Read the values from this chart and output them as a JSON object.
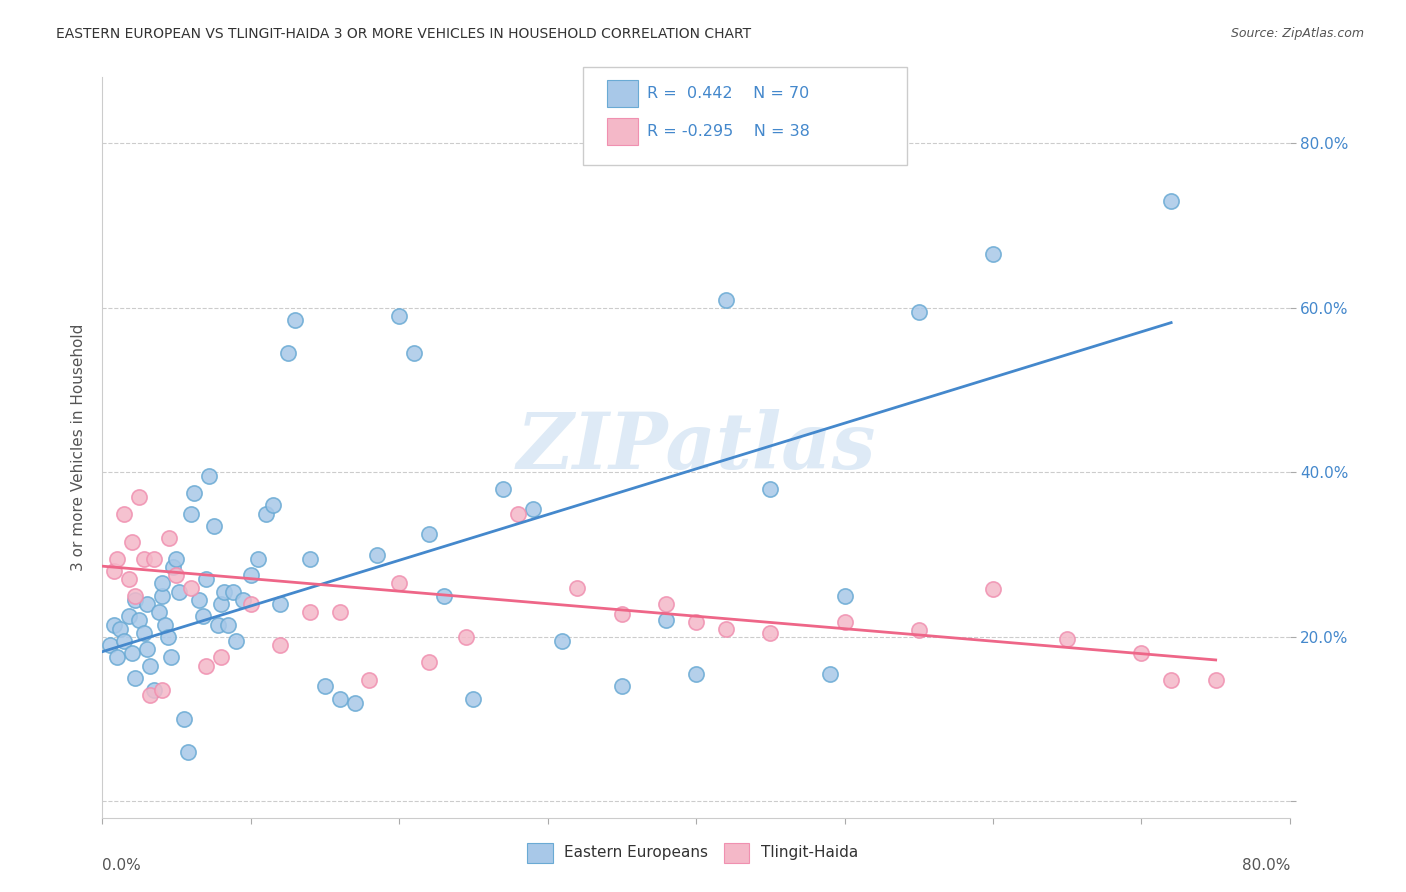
{
  "title": "EASTERN EUROPEAN VS TLINGIT-HAIDA 3 OR MORE VEHICLES IN HOUSEHOLD CORRELATION CHART",
  "source": "Source: ZipAtlas.com",
  "ylabel": "3 or more Vehicles in Household",
  "xlim": [
    0.0,
    0.8
  ],
  "ylim": [
    -0.02,
    0.88
  ],
  "ytick_vals": [
    0.0,
    0.2,
    0.4,
    0.6,
    0.8
  ],
  "ytick_labels": [
    "",
    "20.0%",
    "40.0%",
    "60.0%",
    "80.0%"
  ],
  "xtick_vals": [
    0.0,
    0.1,
    0.2,
    0.3,
    0.4,
    0.5,
    0.6,
    0.7,
    0.8
  ],
  "blue_R": 0.442,
  "blue_N": 70,
  "pink_R": -0.295,
  "pink_N": 38,
  "blue_color": "#a8c8e8",
  "pink_color": "#f4b8c8",
  "blue_edge_color": "#6aaad4",
  "pink_edge_color": "#f090b0",
  "blue_line_color": "#4488cc",
  "pink_line_color": "#ee6688",
  "watermark_color": "#c8ddf0",
  "watermark": "ZIPatlas",
  "legend_label_blue": "Eastern Europeans",
  "legend_label_pink": "Tlingit-Haida",
  "blue_scatter_x": [
    0.005,
    0.008,
    0.01,
    0.012,
    0.015,
    0.018,
    0.02,
    0.022,
    0.022,
    0.025,
    0.028,
    0.03,
    0.03,
    0.032,
    0.035,
    0.038,
    0.04,
    0.04,
    0.042,
    0.044,
    0.046,
    0.048,
    0.05,
    0.052,
    0.055,
    0.058,
    0.06,
    0.062,
    0.065,
    0.068,
    0.07,
    0.072,
    0.075,
    0.078,
    0.08,
    0.082,
    0.085,
    0.088,
    0.09,
    0.095,
    0.1,
    0.105,
    0.11,
    0.115,
    0.12,
    0.125,
    0.13,
    0.14,
    0.15,
    0.16,
    0.17,
    0.185,
    0.2,
    0.21,
    0.22,
    0.23,
    0.25,
    0.27,
    0.29,
    0.31,
    0.35,
    0.38,
    0.4,
    0.42,
    0.45,
    0.49,
    0.5,
    0.55,
    0.6,
    0.72
  ],
  "blue_scatter_y": [
    0.19,
    0.215,
    0.175,
    0.21,
    0.195,
    0.225,
    0.18,
    0.245,
    0.15,
    0.22,
    0.205,
    0.24,
    0.185,
    0.165,
    0.135,
    0.23,
    0.25,
    0.265,
    0.215,
    0.2,
    0.175,
    0.285,
    0.295,
    0.255,
    0.1,
    0.06,
    0.35,
    0.375,
    0.245,
    0.225,
    0.27,
    0.395,
    0.335,
    0.215,
    0.24,
    0.255,
    0.215,
    0.255,
    0.195,
    0.245,
    0.275,
    0.295,
    0.35,
    0.36,
    0.24,
    0.545,
    0.585,
    0.295,
    0.14,
    0.125,
    0.12,
    0.3,
    0.59,
    0.545,
    0.325,
    0.25,
    0.125,
    0.38,
    0.355,
    0.195,
    0.14,
    0.22,
    0.155,
    0.61,
    0.38,
    0.155,
    0.25,
    0.595,
    0.665,
    0.73
  ],
  "pink_scatter_x": [
    0.008,
    0.01,
    0.015,
    0.018,
    0.02,
    0.022,
    0.025,
    0.028,
    0.032,
    0.035,
    0.04,
    0.045,
    0.05,
    0.06,
    0.07,
    0.08,
    0.1,
    0.12,
    0.14,
    0.16,
    0.18,
    0.2,
    0.22,
    0.245,
    0.28,
    0.32,
    0.35,
    0.38,
    0.4,
    0.42,
    0.45,
    0.5,
    0.55,
    0.6,
    0.65,
    0.7,
    0.72,
    0.75
  ],
  "pink_scatter_y": [
    0.28,
    0.295,
    0.35,
    0.27,
    0.315,
    0.25,
    0.37,
    0.295,
    0.13,
    0.295,
    0.135,
    0.32,
    0.275,
    0.26,
    0.165,
    0.175,
    0.24,
    0.19,
    0.23,
    0.23,
    0.148,
    0.265,
    0.17,
    0.2,
    0.35,
    0.26,
    0.228,
    0.24,
    0.218,
    0.21,
    0.205,
    0.218,
    0.208,
    0.258,
    0.198,
    0.18,
    0.148,
    0.148
  ],
  "blue_line_x": [
    0.0,
    0.72
  ],
  "blue_line_y": [
    0.182,
    0.582
  ],
  "pink_line_x": [
    0.0,
    0.75
  ],
  "pink_line_y": [
    0.286,
    0.172
  ]
}
